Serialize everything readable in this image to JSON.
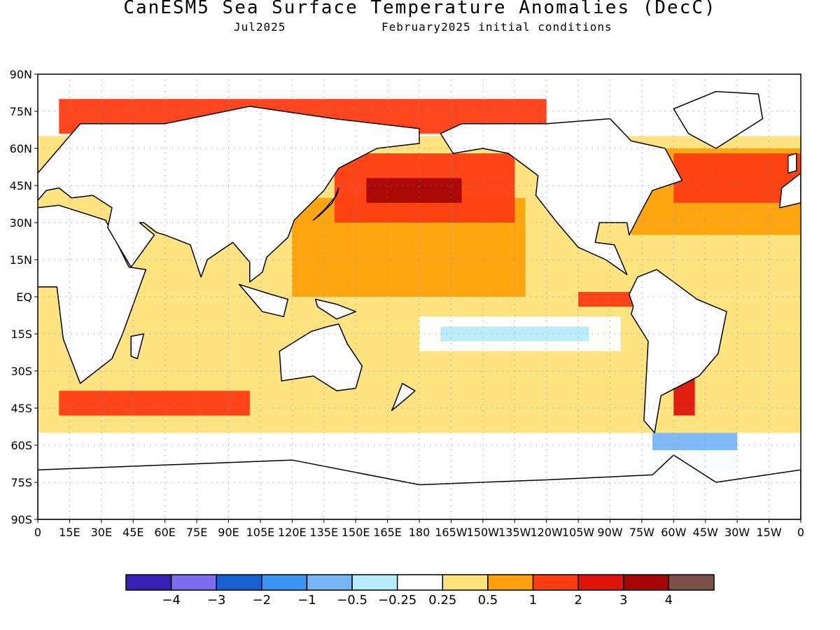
{
  "figure": {
    "title": "CanESM5 Sea Surface Temperature Anomalies (DecC)",
    "valid_month": "Jul2025",
    "initial_conditions": "February2025 initial conditions"
  },
  "map": {
    "projection": "cylindrical equidistant",
    "lon_range": [
      0,
      360
    ],
    "lat_range": [
      -90,
      90
    ],
    "grid": "dotted",
    "y_tick_labels": [
      "90N",
      "75N",
      "60N",
      "45N",
      "30N",
      "15N",
      "EQ",
      "15S",
      "30S",
      "45S",
      "60S",
      "75S",
      "90S"
    ],
    "x_tick_labels": [
      "0",
      "15E",
      "30E",
      "45E",
      "60E",
      "75E",
      "90E",
      "105E",
      "120E",
      "135E",
      "150E",
      "165E",
      "180",
      "165W",
      "150W",
      "135W",
      "120W",
      "105W",
      "90W",
      "75W",
      "60W",
      "45W",
      "30W",
      "15W",
      "0"
    ]
  },
  "colorbar": {
    "colors": [
      "#3a1fb4",
      "#7c6cf0",
      "#1a5fd1",
      "#3c95f0",
      "#78b6f6",
      "#b6ecfa",
      "#ffffff",
      "#ffe27a",
      "#ffa10a",
      "#ff3c12",
      "#de140a",
      "#a50606",
      "#7a5148"
    ],
    "labels": [
      "-4",
      "-3",
      "-2",
      "-1",
      "-0.5",
      "-0.25",
      "0.25",
      "0.5",
      "1",
      "2",
      "3",
      "4"
    ]
  },
  "chart_data": {
    "type": "heatmap",
    "variable": "sea surface temperature anomaly",
    "units": "DecC",
    "levels": [
      -4,
      -3,
      -2,
      -1,
      -0.5,
      -0.25,
      0.25,
      0.5,
      1,
      2,
      3,
      4
    ],
    "regions": [
      {
        "lon": [
          0,
          360
        ],
        "lat": [
          -30,
          65
        ],
        "level_index": 7
      },
      {
        "lon": [
          0,
          360
        ],
        "lat": [
          -55,
          -30
        ],
        "level_index": 7
      },
      {
        "lon": [
          120,
          230
        ],
        "lat": [
          0,
          40
        ],
        "level_index": 8
      },
      {
        "lon": [
          140,
          225
        ],
        "lat": [
          30,
          58
        ],
        "level_index": 9
      },
      {
        "lon": [
          155,
          200
        ],
        "lat": [
          38,
          48
        ],
        "level_index": 11
      },
      {
        "lon": [
          280,
          360
        ],
        "lat": [
          25,
          60
        ],
        "level_index": 8
      },
      {
        "lon": [
          300,
          360
        ],
        "lat": [
          38,
          58
        ],
        "level_index": 9
      },
      {
        "lon": [
          10,
          240
        ],
        "lat": [
          66,
          80
        ],
        "level_index": 9
      },
      {
        "lon": [
          10,
          100
        ],
        "lat": [
          -48,
          -38
        ],
        "level_index": 9
      },
      {
        "lon": [
          180,
          275
        ],
        "lat": [
          -22,
          -8
        ],
        "level_index": 6
      },
      {
        "lon": [
          190,
          260
        ],
        "lat": [
          -18,
          -12
        ],
        "level_index": 5
      },
      {
        "lon": [
          255,
          285
        ],
        "lat": [
          -4,
          2
        ],
        "level_index": 9
      },
      {
        "lon": [
          300,
          310
        ],
        "lat": [
          -48,
          -32
        ],
        "level_index": 10
      },
      {
        "lon": [
          290,
          330
        ],
        "lat": [
          -70,
          -55
        ],
        "level_index": 4
      },
      {
        "lon": [
          0,
          360
        ],
        "lat": [
          -90,
          -62
        ],
        "level_index": 6
      }
    ]
  }
}
